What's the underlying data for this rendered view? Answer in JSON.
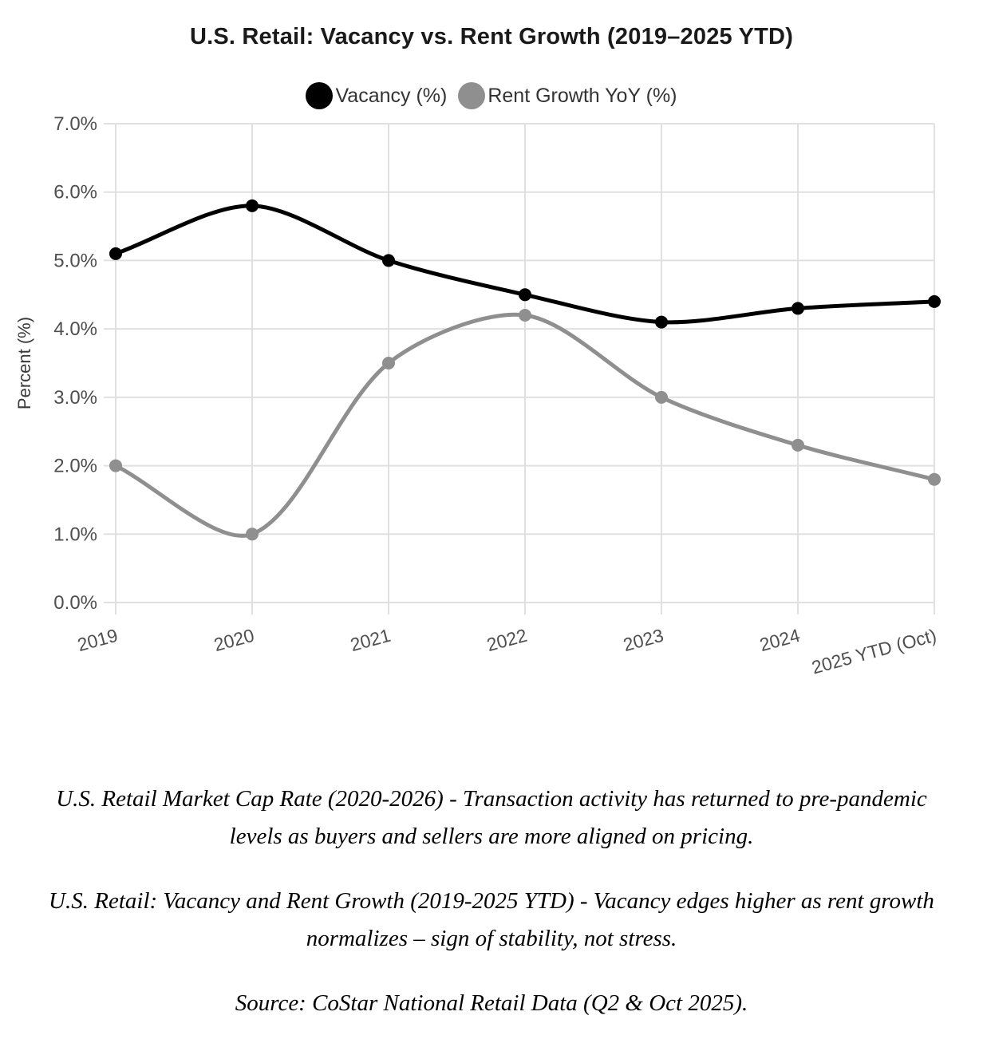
{
  "page": {
    "title": "U.S. Retail: Vacancy vs. Rent Growth (2019–2025 YTD)"
  },
  "chart_data": {
    "type": "line",
    "title": "U.S. Retail: Vacancy vs. Rent Growth (2019–2025 YTD)",
    "categories": [
      "2019",
      "2020",
      "2021",
      "2022",
      "2023",
      "2024",
      "2025 YTD (Oct)"
    ],
    "series": [
      {
        "name": "Vacancy (%)",
        "color": "#000000",
        "values": [
          5.1,
          5.8,
          5.0,
          4.5,
          4.1,
          4.3,
          4.4
        ]
      },
      {
        "name": "Rent Growth YoY (%)",
        "color": "#8f8f8f",
        "values": [
          2.0,
          1.0,
          3.5,
          4.2,
          3.0,
          2.3,
          1.8
        ]
      }
    ],
    "xlabel": "",
    "ylabel": "Percent (%)",
    "ylim": [
      0,
      7
    ],
    "ytick_step": 1,
    "ytick_decimals": 1,
    "ytick_suffix": "%",
    "grid": true,
    "legend_position": "top",
    "line_tension": 0.3,
    "x_label_rotation_deg": -15
  },
  "colors": {
    "grid": "#e0e0e0",
    "tick_label": "#4f4f4f",
    "axis_title": "#3a3a3a",
    "title_text": "#1a1a1a",
    "legend_text": "#333333"
  },
  "captions": [
    "U.S. Retail Market Cap Rate (2020-2026) - Transaction activity has returned to pre-pandemic levels as buyers and sellers are more aligned on pricing.",
    "U.S. Retail: Vacancy and Rent Growth (2019-2025 YTD) - Vacancy edges higher as rent growth normalizes – sign of stability, not stress.",
    "Source: CoStar National Retail Data (Q2 & Oct 2025)."
  ]
}
